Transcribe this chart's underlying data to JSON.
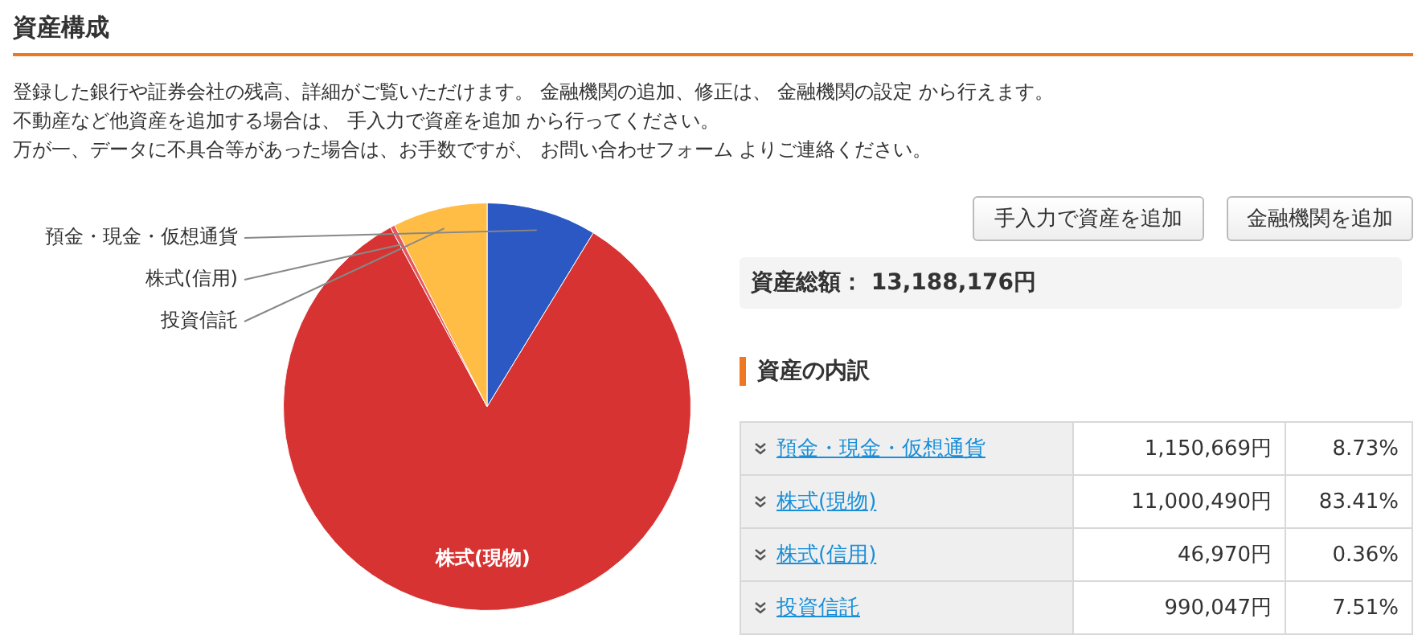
{
  "chart_data": {
    "type": "pie",
    "title": "資産構成",
    "categories": [
      "預金・現金・仮想通貨",
      "株式(現物)",
      "株式(信用)",
      "投資信託"
    ],
    "values": [
      8.73,
      83.41,
      0.36,
      7.51
    ],
    "colors": [
      "#2b58c2",
      "#d63332",
      "#e8565e",
      "#ffbd46"
    ],
    "annotations": [
      "登録した銀行や証券会社の残高、詳細がご覧いただけます。 金融機関の追加、修正は、 金融機関の設定 から行えます。",
      "不動産など他資産を追加する場合は、 手入力で資産を追加 から行ってください。",
      "万が一、データに不具合等があった場合は、お手数ですが、 お問い合わせフォーム よりご連絡ください。",
      "手入力で資産を追加",
      "金融機関を追加",
      "資産総額： 13,188,176円",
      "資産の内訳",
      "1,150,669円",
      "11,000,490円",
      "46,970円",
      "990,047円",
      "8.73%",
      "83.41%",
      "0.36%",
      "7.51%"
    ]
  }
}
